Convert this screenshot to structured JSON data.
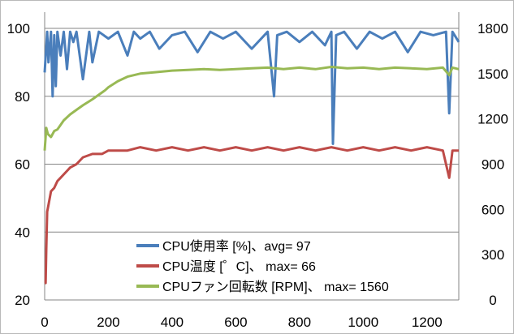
{
  "chart_data": {
    "type": "line",
    "title": "",
    "xlabel": "",
    "ylabel": "",
    "y2label": "",
    "xlim": [
      0,
      1300
    ],
    "ylim": [
      20,
      100
    ],
    "y2lim": [
      0,
      1800
    ],
    "x_ticks": [
      "0",
      "200",
      "400",
      "600",
      "800",
      "1000",
      "1200"
    ],
    "y_ticks": [
      "20",
      "40",
      "60",
      "80",
      "100"
    ],
    "y2_ticks": [
      "0",
      "300",
      "600",
      "900",
      "1200",
      "1500",
      "1800"
    ],
    "grid": "horizontal",
    "legend_position": "bottom-center",
    "series": [
      {
        "name": "CPU使用率 [%]、avg= 97",
        "axis": "left",
        "color": "#4a7ebb",
        "stroke_width": 3,
        "x": [
          0,
          8,
          12,
          20,
          25,
          30,
          35,
          40,
          50,
          60,
          70,
          80,
          90,
          100,
          120,
          140,
          150,
          170,
          200,
          230,
          260,
          280,
          300,
          330,
          360,
          400,
          440,
          480,
          520,
          560,
          600,
          650,
          700,
          720,
          730,
          760,
          800,
          840,
          880,
          900,
          905,
          915,
          940,
          980,
          1020,
          1060,
          1100,
          1140,
          1180,
          1220,
          1260,
          1270,
          1280,
          1300
        ],
        "values": [
          87,
          99,
          90,
          99,
          80,
          98,
          83,
          99,
          92,
          99,
          88,
          99,
          96,
          99,
          85,
          99,
          90,
          99,
          97,
          99,
          92,
          99,
          97,
          99,
          94,
          98,
          99,
          93,
          99,
          97,
          99,
          94,
          99,
          80,
          98,
          99,
          96,
          99,
          95,
          99,
          66,
          98,
          99,
          94,
          99,
          97,
          99,
          93,
          99,
          98,
          99,
          75,
          99,
          96
        ]
      },
      {
        "name": "CPU温度 [゜C]、 max= 66",
        "axis": "left",
        "color": "#be4b48",
        "stroke_width": 3,
        "x": [
          0,
          3,
          5,
          8,
          12,
          20,
          30,
          40,
          50,
          60,
          70,
          80,
          100,
          120,
          150,
          180,
          200,
          230,
          260,
          300,
          350,
          400,
          450,
          500,
          550,
          600,
          650,
          700,
          750,
          800,
          850,
          900,
          950,
          1000,
          1050,
          1100,
          1150,
          1200,
          1250,
          1270,
          1280,
          1300
        ],
        "values": [
          25,
          25,
          35,
          46,
          48,
          52,
          53,
          55,
          56,
          57,
          58,
          59,
          60,
          62,
          63,
          63,
          64,
          64,
          64,
          65,
          64,
          65,
          64,
          65,
          64,
          65,
          64,
          65,
          64,
          65,
          64,
          65,
          64,
          65,
          64,
          65,
          64,
          65,
          64,
          56,
          64,
          64
        ]
      },
      {
        "name": "CPUファン回転数 [RPM]、 max= 1560",
        "axis": "right",
        "color": "#98b954",
        "stroke_width": 3,
        "x": [
          0,
          5,
          10,
          20,
          30,
          40,
          50,
          60,
          80,
          100,
          120,
          150,
          170,
          190,
          200,
          230,
          260,
          300,
          350,
          400,
          450,
          500,
          550,
          600,
          650,
          700,
          750,
          800,
          850,
          900,
          950,
          1000,
          1050,
          1100,
          1150,
          1200,
          1250,
          1270,
          1280,
          1300
        ],
        "values": [
          990,
          1140,
          1100,
          1080,
          1120,
          1130,
          1160,
          1190,
          1230,
          1260,
          1290,
          1330,
          1360,
          1390,
          1410,
          1450,
          1480,
          1500,
          1510,
          1520,
          1525,
          1530,
          1525,
          1530,
          1535,
          1540,
          1530,
          1540,
          1530,
          1545,
          1535,
          1540,
          1530,
          1540,
          1535,
          1530,
          1540,
          1490,
          1540,
          1530
        ]
      }
    ]
  }
}
